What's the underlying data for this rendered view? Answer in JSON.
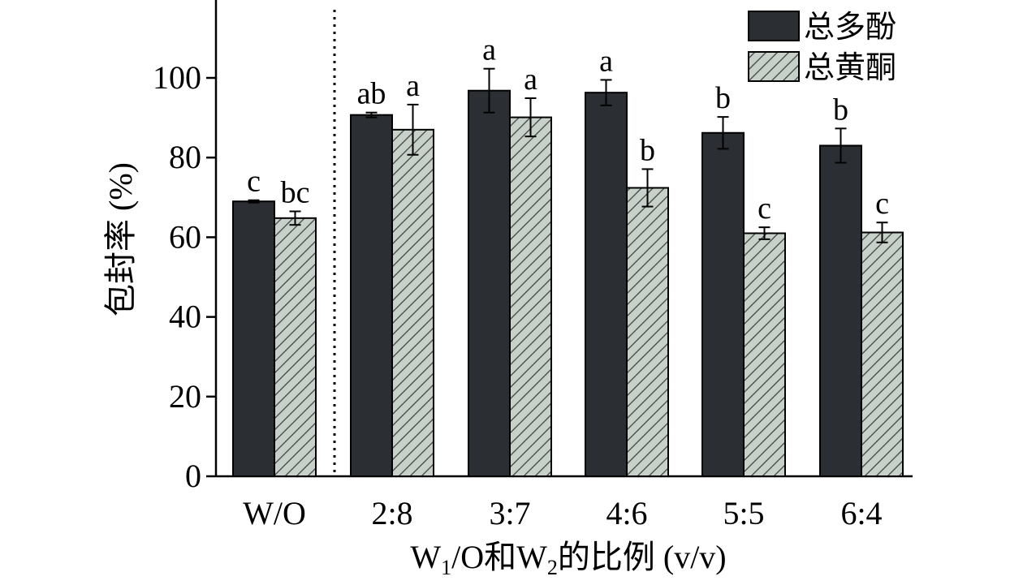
{
  "chart_data": {
    "type": "bar",
    "categories": [
      "W/O",
      "2:8",
      "3:7",
      "4:6",
      "5:5",
      "6:4"
    ],
    "series": [
      {
        "name": "总多酚",
        "values": [
          69,
          90.7,
          96.8,
          96.3,
          86.2,
          83
        ],
        "errors": [
          0.3,
          0.6,
          5.5,
          3.2,
          4,
          4.3
        ],
        "letters": [
          "c",
          "ab",
          "a",
          "a",
          "b",
          "b"
        ],
        "color": "#2b2f33"
      },
      {
        "name": "总黄酮",
        "values": [
          64.8,
          87,
          90.1,
          72.4,
          61,
          61.2
        ],
        "errors": [
          1.7,
          6.3,
          4.8,
          4.7,
          1.5,
          2.5
        ],
        "letters": [
          "bc",
          "a",
          "a",
          "b",
          "c",
          "c"
        ],
        "color": "#c8d0ca",
        "pattern": "hatched"
      }
    ],
    "ylabel": "包封率 (%)",
    "xlabel": {
      "pre": "W",
      "sub1": "1",
      "mid": "/O和W",
      "sub2": "2",
      "post": "的比例 (v/v)"
    },
    "yticks": [
      0,
      20,
      40,
      60,
      80,
      100
    ],
    "ylim": [
      0,
      120
    ],
    "divider_after_category": "W/O",
    "legend_position": "top-right",
    "grid": false
  }
}
